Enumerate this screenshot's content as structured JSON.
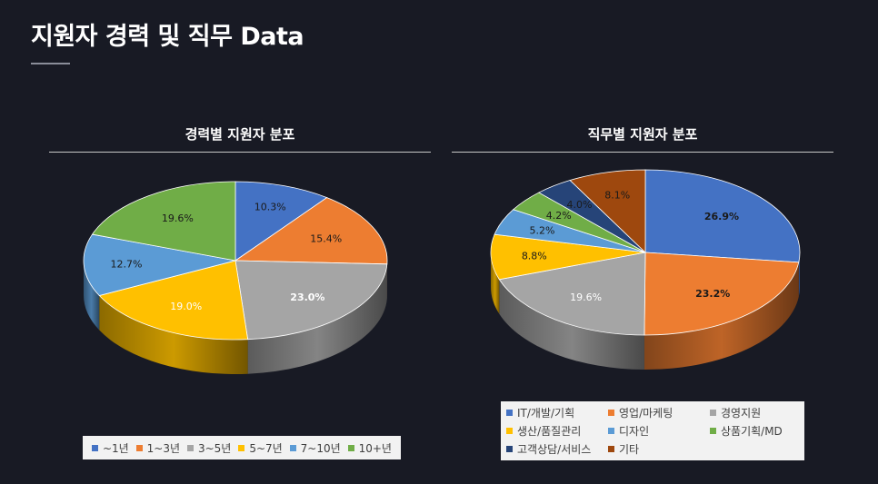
{
  "page": {
    "title": "지원자 경력 및 직무 Data"
  },
  "chart_data": [
    {
      "type": "pie",
      "title": "경력별 지원자 분포",
      "labels": [
        "~1년",
        "1~3년",
        "3~5년",
        "5~7년",
        "7~10년",
        "10+년"
      ],
      "values": [
        10.3,
        15.4,
        23.0,
        19.0,
        12.7,
        19.6
      ],
      "value_labels": [
        "10.3%",
        "15.4%",
        "23.0%",
        "19.0%",
        "12.7%",
        "19.6%"
      ],
      "colors": [
        "#4472c4",
        "#ed7d31",
        "#a5a5a5",
        "#ffc000",
        "#5b9bd5",
        "#70ad47"
      ],
      "legend_position": "bottom",
      "style": "3d"
    },
    {
      "type": "pie",
      "title": "직무별 지원자 분포",
      "labels": [
        "IT/개발/기획",
        "영업/마케팅",
        "경영지원",
        "생산/품질관리",
        "디자인",
        "상품기획/MD",
        "고객상담/서비스",
        "기타"
      ],
      "values": [
        26.9,
        23.2,
        19.6,
        8.8,
        5.2,
        4.2,
        4.0,
        8.1
      ],
      "value_labels": [
        "26.9%",
        "23.2%",
        "19.6%",
        "8.8%",
        "5.2%",
        "4.2%",
        "4.0%",
        "8.1%"
      ],
      "colors": [
        "#4472c4",
        "#ed7d31",
        "#a5a5a5",
        "#ffc000",
        "#5b9bd5",
        "#70ad47",
        "#264478",
        "#9e480e"
      ],
      "legend_position": "bottom",
      "style": "3d"
    }
  ]
}
